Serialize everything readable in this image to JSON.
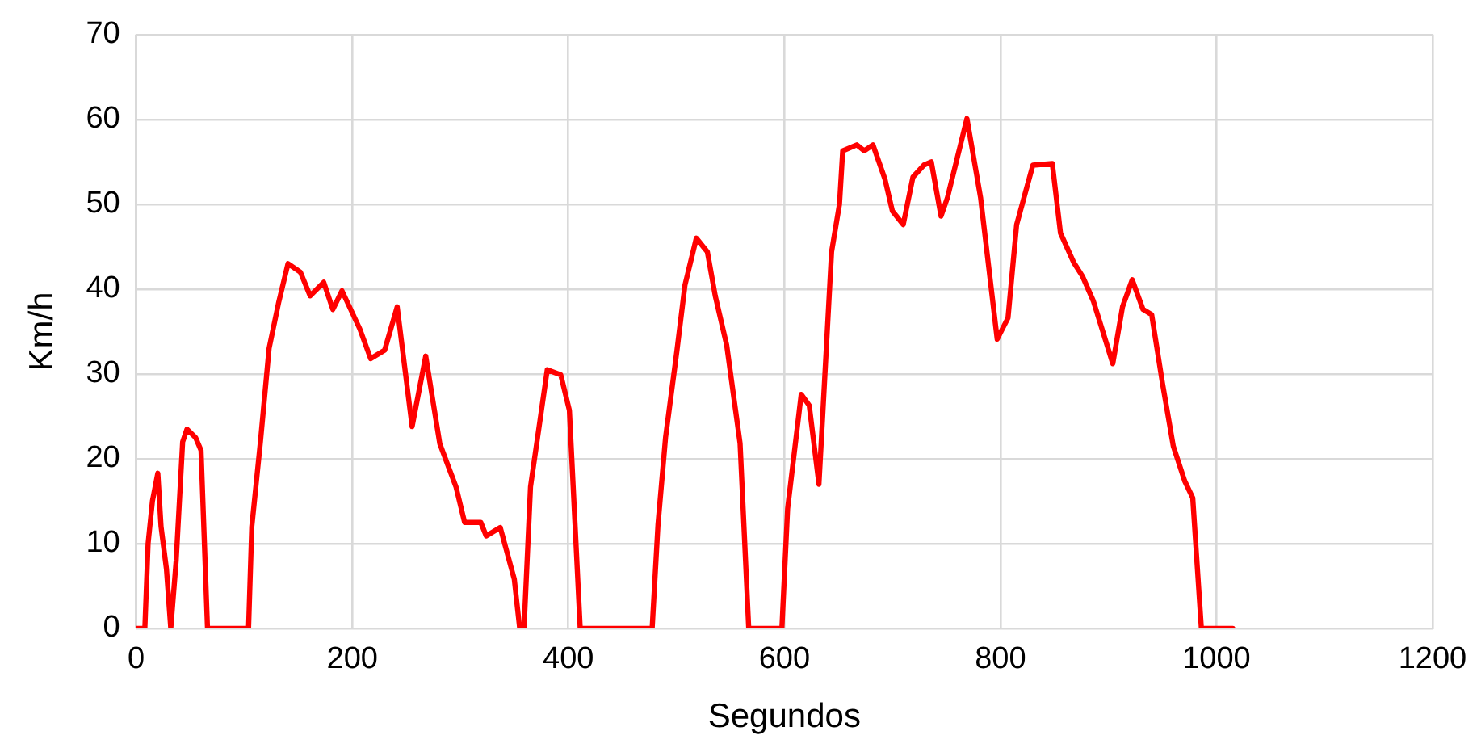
{
  "chart_data": {
    "type": "line",
    "xlabel": "Segundos",
    "ylabel": "Km/h",
    "xlim": [
      0,
      1200
    ],
    "ylim": [
      0,
      70
    ],
    "xticks": [
      0,
      200,
      400,
      600,
      800,
      1000,
      1200
    ],
    "yticks": [
      0,
      10,
      20,
      30,
      40,
      50,
      60,
      70
    ],
    "grid": true,
    "legend": false,
    "marker": "none",
    "line_style": "solid",
    "series": [
      {
        "color": "#ff0000",
        "x": [
          0,
          8,
          11,
          15,
          20,
          23,
          28,
          32,
          37,
          43,
          47,
          55,
          60,
          66,
          104,
          107,
          115,
          123,
          132,
          140.5,
          152,
          161,
          173.6,
          182,
          190.5,
          207,
          217,
          230,
          241.6,
          255.4,
          268,
          281,
          296,
          304,
          319,
          324,
          337,
          350,
          355,
          359,
          365,
          380.5,
          393,
          401,
          411,
          477.6,
          483,
          490,
          500.6,
          508,
          518.5,
          528.7,
          536,
          546.6,
          559,
          567,
          597.7,
          603,
          615.6,
          623,
          632,
          643.7,
          651,
          654,
          667,
          674,
          682,
          693,
          700,
          710,
          719,
          729,
          736,
          745,
          751,
          769,
          781.6,
          797,
          807,
          815,
          830,
          848,
          855.6,
          868,
          876,
          886,
          904,
          913,
          922,
          932,
          940,
          950,
          960,
          970.5,
          978,
          986,
          1015
        ],
        "values": [
          0,
          0,
          10,
          15,
          18.3,
          12,
          7,
          0,
          8,
          22,
          23.5,
          22.5,
          21,
          0,
          0,
          12,
          22,
          33,
          38.5,
          43,
          42,
          39.2,
          40.8,
          37.6,
          39.8,
          35.3,
          31.8,
          32.8,
          37.9,
          23.8,
          32.1,
          21.8,
          16.7,
          12.5,
          12.5,
          10.9,
          11.9,
          5.8,
          0,
          0,
          16.7,
          30.5,
          29.9,
          25.7,
          0,
          0,
          12.2,
          22.5,
          32.8,
          40.5,
          46,
          44.4,
          39.2,
          33.4,
          21.8,
          0,
          0,
          14.1,
          27.6,
          26.3,
          17,
          44.4,
          50,
          56.3,
          57,
          56.3,
          57,
          53,
          49.2,
          47.6,
          53.2,
          54.6,
          55,
          48.6,
          50.8,
          60.1,
          50.8,
          34.1,
          36.6,
          47.6,
          54.6,
          54.8,
          46.6,
          43.1,
          41.5,
          38.6,
          31.2,
          37.9,
          41.1,
          37.6,
          37,
          28.9,
          21.5,
          17.4,
          15.4,
          0,
          0
        ]
      }
    ]
  }
}
